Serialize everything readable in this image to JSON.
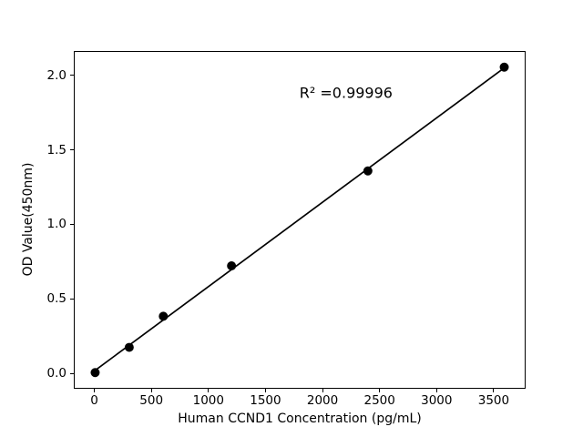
{
  "figure": {
    "background": "#ffffff"
  },
  "chart_data": {
    "type": "scatter",
    "title": "",
    "xlabel": "Human CCND1 Concentration (pg/mL)",
    "ylabel": "OD Value(450nm)",
    "annotation": "R² =0.99996",
    "points": {
      "x": [
        0,
        300,
        600,
        1200,
        2400,
        3600
      ],
      "y": [
        0.0,
        0.17,
        0.38,
        0.72,
        1.36,
        2.06
      ]
    },
    "fit_line": {
      "x": [
        0,
        3600
      ],
      "y": [
        0.015,
        2.055
      ]
    },
    "xlim": [
      -180,
      3780
    ],
    "ylim": [
      -0.103,
      2.163
    ],
    "x_ticks": [
      "0",
      "500",
      "1000",
      "1500",
      "2000",
      "2500",
      "3000",
      "3500"
    ],
    "x_tick_values": [
      0,
      500,
      1000,
      1500,
      2000,
      2500,
      3000,
      3500
    ],
    "y_ticks": [
      "0.0",
      "0.5",
      "1.0",
      "1.5",
      "2.0"
    ],
    "y_tick_values": [
      0.0,
      0.5,
      1.0,
      1.5,
      2.0
    ],
    "marker_color": "#000000",
    "line_color": "#000000",
    "axis_color": "#000000",
    "marker_size_px": 10,
    "grid": false,
    "legend": "none"
  }
}
